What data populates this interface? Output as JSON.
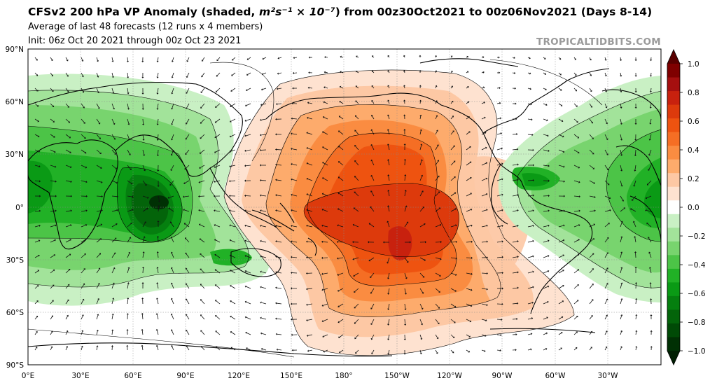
{
  "header": {
    "title_prefix": "CFSv2 200 hPa VP Anomaly (shaded, ",
    "title_units": "m²s⁻¹ × 10⁻⁷",
    "title_suffix": ") from 00z30Oct2021 to 00z06Nov2021 (Days 8-14)",
    "subtitle_1": "Average of last 48 forecasts (12 runs x 4 members)",
    "subtitle_2": "Init: 06z Oct 20 2021 through 00z Oct 23 2021",
    "brand": "TROPICALTIDBITS.COM"
  },
  "map": {
    "lat_labels": [
      "90°N",
      "60°N",
      "30°N",
      "0°",
      "30°S",
      "60°S",
      "90°S"
    ],
    "lon_labels": [
      "0°E",
      "30°E",
      "60°E",
      "90°E",
      "120°E",
      "150°E",
      "180°",
      "150°W",
      "120°W",
      "90°W",
      "60°W",
      "30°W"
    ],
    "lat_values": [
      90,
      60,
      30,
      0,
      -30,
      -60,
      -90
    ],
    "lon_values": [
      0,
      30,
      60,
      90,
      120,
      150,
      180,
      210,
      240,
      270,
      300,
      330
    ],
    "lon_range": [
      0,
      360
    ],
    "lat_range": [
      -90,
      90
    ],
    "grid": true,
    "anomaly_centers": [
      {
        "name": "negative (green) max",
        "lon": 75,
        "lat": 3,
        "value": -1.0
      },
      {
        "name": "positive (orange) max",
        "lon": 208,
        "lat": -20,
        "value": 0.9
      },
      {
        "name": "negative Atlantic",
        "lon": 340,
        "lat": 0,
        "value": -0.7
      }
    ]
  },
  "colorbar": {
    "tick_labels": [
      "1.0",
      "0.8",
      "0.6",
      "0.4",
      "0.2",
      "0.0",
      "−0.2",
      "−0.4",
      "−0.6",
      "−0.8",
      "−1.0"
    ],
    "levels": [
      1.0,
      0.9,
      0.8,
      0.7,
      0.6,
      0.5,
      0.4,
      0.3,
      0.2,
      0.1,
      -0.1,
      -0.2,
      -0.3,
      -0.4,
      -0.5,
      -0.6,
      -0.7,
      -0.8,
      -0.9,
      -1.0
    ],
    "colors": [
      "#7f0000",
      "#a50f0f",
      "#c8210e",
      "#dd3a0c",
      "#ee5310",
      "#f56e24",
      "#fa8c41",
      "#fdab6c",
      "#fdc8a4",
      "#fee2d0",
      "#ffffff",
      "#c9f0c4",
      "#a2e39a",
      "#78d46e",
      "#4cc447",
      "#21b126",
      "#0a9a15",
      "#057f0f",
      "#03640a",
      "#004a06",
      "#003004"
    ]
  }
}
